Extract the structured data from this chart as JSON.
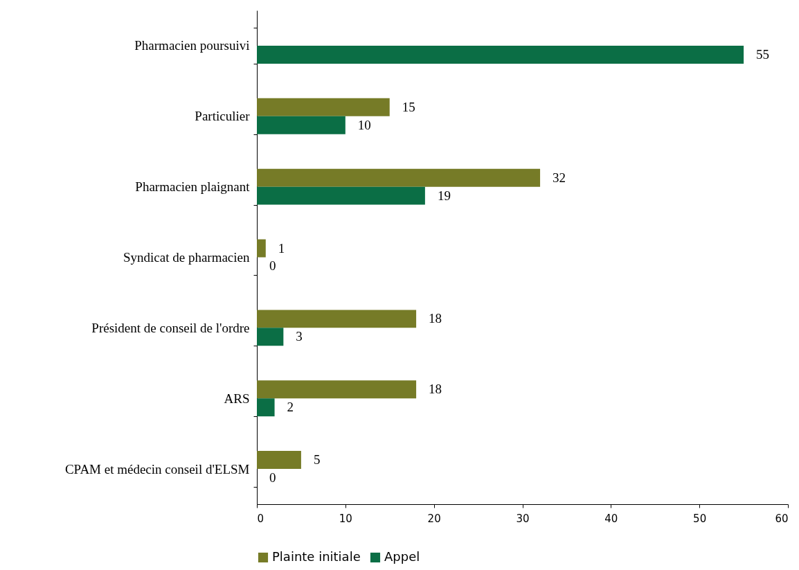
{
  "chart_data": {
    "type": "bar",
    "orientation": "horizontal",
    "categories": [
      "Pharmacien poursuivi",
      "Particulier",
      "Pharmacien plaignant",
      "Syndicat de pharmacien",
      "Président de conseil de l'ordre",
      "ARS",
      "CPAM et médecin conseil d'ELSM"
    ],
    "series": [
      {
        "name": "Plainte initiale",
        "color": "#767b27",
        "values": [
          null,
          15,
          32,
          1,
          18,
          18,
          5
        ]
      },
      {
        "name": "Appel",
        "color": "#0b6e45",
        "values": [
          55,
          10,
          19,
          0,
          3,
          2,
          0
        ]
      }
    ],
    "xlim": [
      0,
      60
    ],
    "xticks": [
      0,
      10,
      20,
      30,
      40,
      50,
      60
    ],
    "data_labels": true,
    "grid": false,
    "legend": "bottom"
  }
}
